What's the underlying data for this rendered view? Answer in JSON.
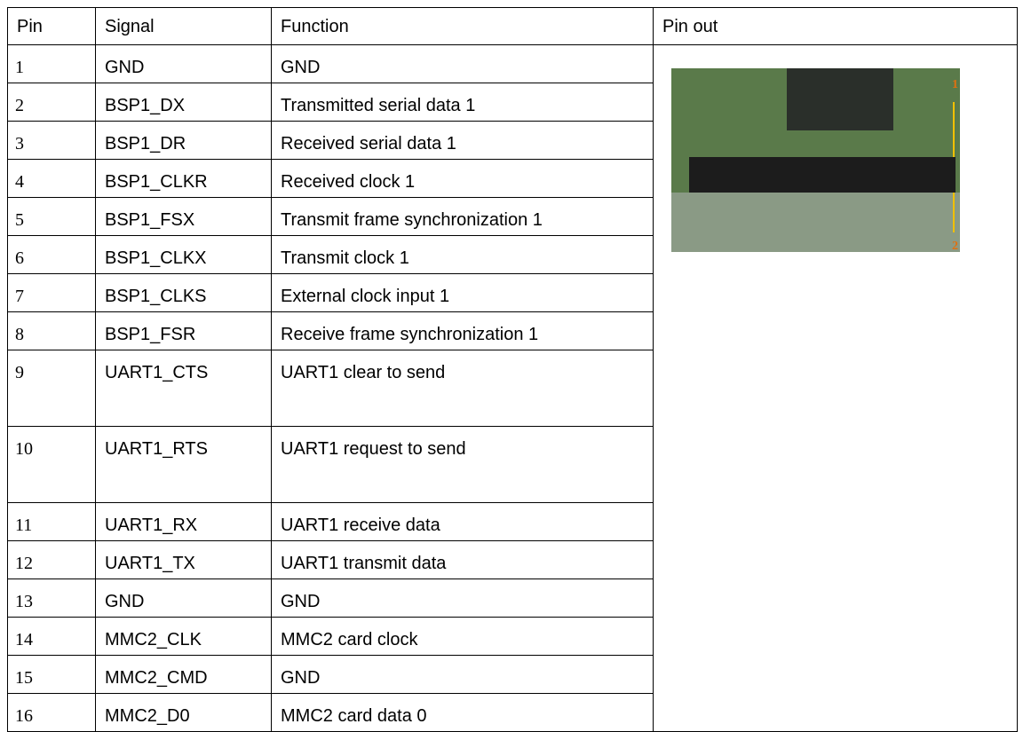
{
  "table": {
    "header": [
      "Pin",
      "Signal",
      "Function",
      "Pin out"
    ],
    "rows": [
      [
        1,
        "GND",
        "GND"
      ],
      [
        2,
        "BSP1_DX",
        "Transmitted serial data 1"
      ],
      [
        3,
        "BSP1_DR",
        "Received serial data 1"
      ],
      [
        4,
        "BSP1_CLKR",
        "Received clock 1"
      ],
      [
        5,
        "BSP1_FSX",
        "Transmit frame synchronization 1"
      ],
      [
        6,
        "BSP1_CLKX",
        "Transmit clock 1"
      ],
      [
        7,
        "BSP1_CLKS",
        "External clock input 1"
      ],
      [
        8,
        "BSP1_FSR",
        "Receive frame synchronization 1"
      ],
      [
        9,
        "UART1_CTS",
        "UART1 clear to send"
      ],
      [
        10,
        "UART1_RTS",
        "UART1 request to send"
      ],
      [
        11,
        "UART1_RX",
        "UART1 receive data"
      ],
      [
        12,
        "UART1_TX",
        "UART1 transmit data"
      ],
      [
        13,
        "GND",
        "GND"
      ],
      [
        14,
        "MMC2_CLK",
        "MMC2 card clock"
      ],
      [
        15,
        "MMC2_CMD",
        "GND"
      ],
      [
        16,
        "MMC2_D0",
        "MMC2 card data 0"
      ]
    ],
    "pinout_labels": [
      "1",
      "2"
    ]
  }
}
